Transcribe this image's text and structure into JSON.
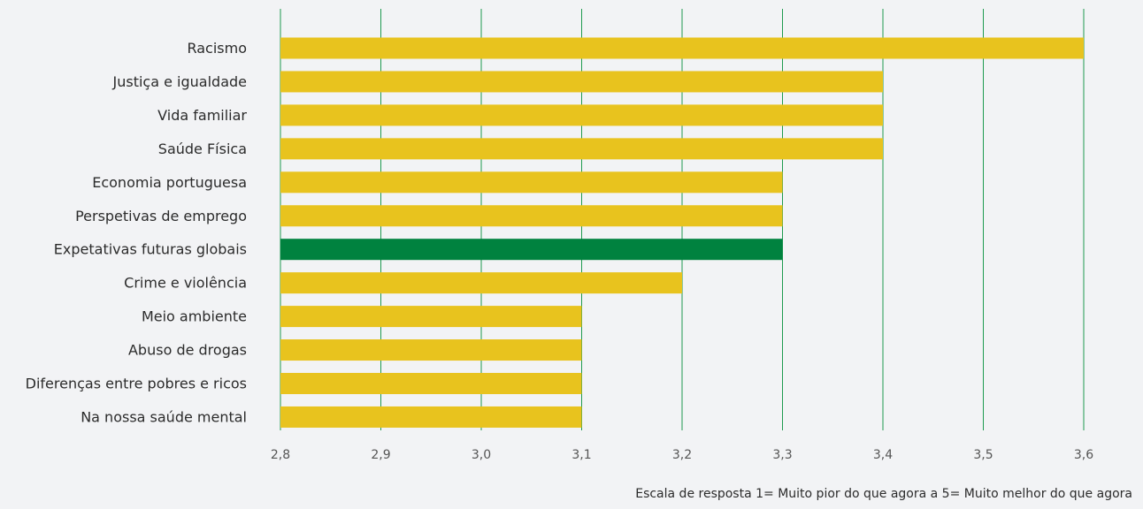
{
  "chart_data": {
    "type": "bar",
    "orientation": "horizontal",
    "categories": [
      "Racismo",
      "Justiça e igualdade",
      "Vida familiar",
      "Saúde Física",
      "Economia portuguesa",
      "Perspetivas de emprego",
      "Expetativas futuras globais",
      "Crime e violência",
      "Meio ambiente",
      "Abuso de drogas",
      "Diferenças entre pobres e ricos",
      "Na nossa saúde mental"
    ],
    "values": [
      3.6,
      3.4,
      3.4,
      3.4,
      3.3,
      3.3,
      3.3,
      3.2,
      3.1,
      3.1,
      3.1,
      3.1
    ],
    "highlight_index": 6,
    "xlim": [
      2.8,
      3.6
    ],
    "xticks": [
      "2,8",
      "2,9",
      "3,0",
      "3,1",
      "3,2",
      "3,3",
      "3,4",
      "3,5",
      "3,6"
    ],
    "xtick_values": [
      2.8,
      2.9,
      3.0,
      3.1,
      3.2,
      3.3,
      3.4,
      3.5,
      3.6
    ],
    "grid": "vertical",
    "title": "",
    "xlabel": "",
    "ylabel": ""
  },
  "colors": {
    "bar": "#e8c31e",
    "highlight_bar": "#00823f",
    "grid": "#1e9a4f",
    "background": "#f2f3f5"
  },
  "footnote": "Escala de resposta 1= Muito pior do que agora a 5= Muito melhor do que agora"
}
